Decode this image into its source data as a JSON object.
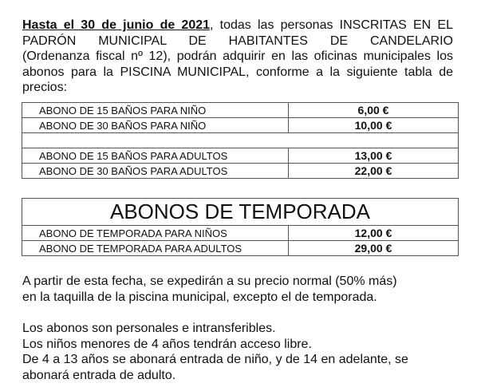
{
  "intro": {
    "first_line_bold": "Hasta el 30 de junio de 2021",
    "first_line_rest": ", todas las personas INSCRITAS EN EL",
    "lines": [
      "PADRÓN MUNICIPAL DE HABITANTES DE CANDELARIO",
      "(Ordenanza fiscal nº 12), podrán adquirir en las oficinas municipales los",
      "abonos para la PISCINA MUNICIPAL, conforme a la siguiente tabla de",
      "precios:"
    ]
  },
  "table_banos": {
    "rows": [
      {
        "label": "ABONO DE 15 BAÑOS PARA NIÑO",
        "price": "6,00 €"
      },
      {
        "label": "ABONO DE 30 BAÑOS PARA NIÑO",
        "price": "10,00 €"
      },
      {
        "label": "ABONO DE 15 BAÑOS PARA ADULTOS",
        "price": "13,00 €"
      },
      {
        "label": "ABONO DE 30 BAÑOS PARA ADULTOS",
        "price": "22,00 €"
      }
    ]
  },
  "table_temporada": {
    "title": "ABONOS DE TEMPORADA",
    "rows": [
      {
        "label": "ABONO DE TEMPORADA PARA NIÑOS",
        "price": "12,00 €"
      },
      {
        "label": "ABONO DE TEMPORADA PARA ADULTOS",
        "price": "29,00 €"
      }
    ]
  },
  "after": [
    "A partir de esta fecha, se expedirán a su precio normal (50% más)",
    "en la taquilla de la piscina municipal, excepto el de temporada."
  ],
  "notes": [
    "Los abonos son personales e intransferibles.",
    "Los niños menores de 4 años tendrán acceso libre.",
    "De 4 a 13 años se abonará entrada de niño, y de 14 en adelante, se",
    "abonará entrada de adulto."
  ]
}
